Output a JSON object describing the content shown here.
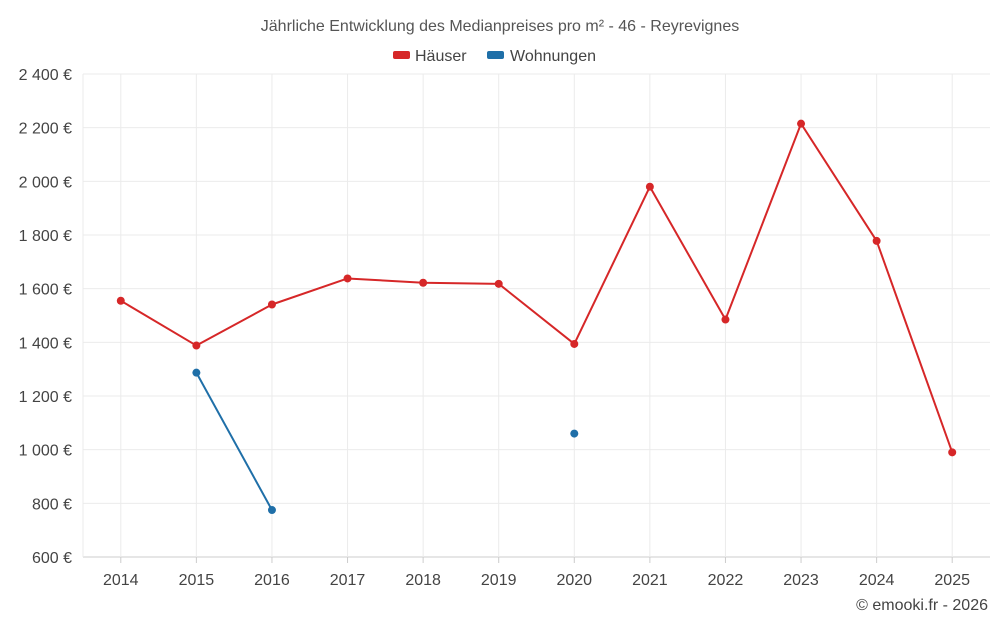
{
  "chart_data": {
    "type": "line",
    "title": "Jährliche Entwicklung des Medianpreises pro m² - 46 - Reyrevignes",
    "categories": [
      "2014",
      "2015",
      "2016",
      "2017",
      "2018",
      "2019",
      "2020",
      "2021",
      "2022",
      "2023",
      "2024",
      "2025"
    ],
    "ylim": [
      600,
      2400
    ],
    "yticks": [
      600,
      800,
      1000,
      1200,
      1400,
      1600,
      1800,
      2000,
      2200,
      2400
    ],
    "ytick_labels": [
      "600 €",
      "800 €",
      "1 000 €",
      "1 200 €",
      "1 400 €",
      "1 600 €",
      "1 800 €",
      "2 000 €",
      "2 200 €",
      "2 400 €"
    ],
    "grid": true,
    "legend_position": "top-center",
    "series": [
      {
        "name": "Häuser",
        "color": "#d62728",
        "values": [
          1555,
          1388,
          1541,
          1638,
          1622,
          1618,
          1394,
          1980,
          1485,
          2215,
          1778,
          990
        ]
      },
      {
        "name": "Wohnungen",
        "color": "#1f6fa8",
        "values": [
          null,
          1287,
          775,
          null,
          null,
          null,
          1060,
          null,
          null,
          null,
          null,
          null
        ]
      }
    ]
  },
  "credit": "© emooki.fr - 2026"
}
